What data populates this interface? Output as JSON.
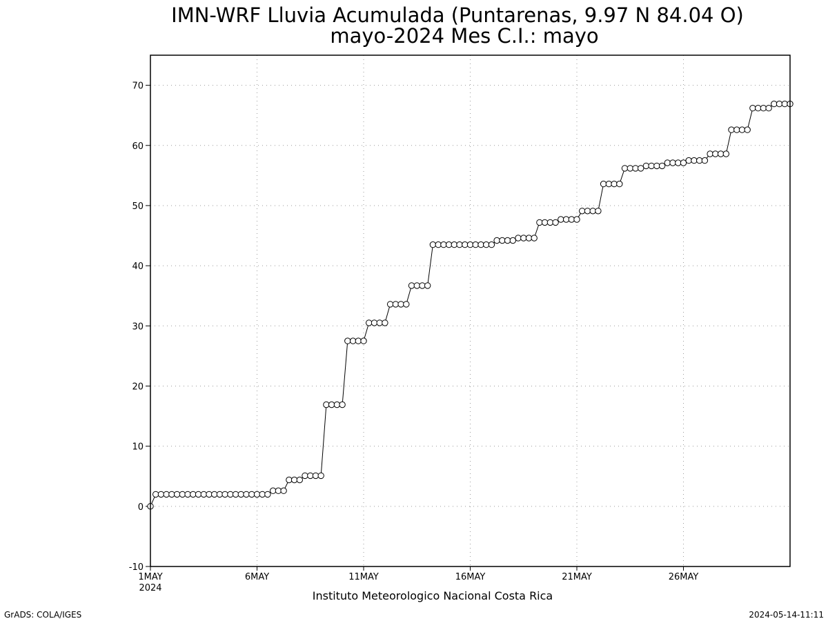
{
  "chart_data": {
    "type": "line",
    "title": "IMN-WRF  Lluvia Acumulada (Puntarenas, 9.97  N 84.04  O)",
    "subtitle": "mayo-2024 Mes C.I.: mayo",
    "xlabel": "Instituto Meteorologico Nacional Costa Rica",
    "ylabel": "",
    "ylim": [
      -10,
      75
    ],
    "yticks": [
      -10,
      0,
      10,
      20,
      30,
      40,
      50,
      60,
      70
    ],
    "xlim": [
      1,
      31
    ],
    "x_ticks": [
      {
        "day": 1,
        "label": "1MAY",
        "sublabel": "2024"
      },
      {
        "day": 6,
        "label": "6MAY"
      },
      {
        "day": 11,
        "label": "11MAY"
      },
      {
        "day": 16,
        "label": "16MAY"
      },
      {
        "day": 21,
        "label": "21MAY"
      },
      {
        "day": 26,
        "label": "26MAY"
      }
    ],
    "grid": true,
    "marker": "open-circle",
    "line_color": "#000000",
    "x_step_hours": 6,
    "series": [
      {
        "values": [
          0,
          2,
          2,
          2,
          2,
          2,
          2,
          2,
          2,
          2,
          2,
          2,
          2,
          2,
          2,
          2,
          2,
          2,
          2,
          2,
          2,
          2,
          2,
          2.6,
          2.6,
          2.6,
          4.4,
          4.4,
          4.4,
          5.1,
          5.1,
          5.1,
          5.1,
          16.9,
          16.9,
          16.9,
          16.9,
          27.5,
          27.5,
          27.5,
          27.5,
          30.5,
          30.5,
          30.5,
          30.5,
          33.6,
          33.6,
          33.6,
          33.6,
          36.7,
          36.7,
          36.7,
          36.7,
          43.5,
          43.5,
          43.5,
          43.5,
          43.5,
          43.5,
          43.5,
          43.5,
          43.5,
          43.5,
          43.5,
          43.5,
          44.2,
          44.2,
          44.2,
          44.2,
          44.6,
          44.6,
          44.6,
          44.6,
          47.2,
          47.2,
          47.2,
          47.2,
          47.7,
          47.7,
          47.7,
          47.7,
          49.1,
          49.1,
          49.1,
          49.1,
          53.6,
          53.6,
          53.6,
          53.6,
          56.2,
          56.2,
          56.2,
          56.2,
          56.6,
          56.6,
          56.6,
          56.6,
          57.1,
          57.1,
          57.1,
          57.1,
          57.5,
          57.5,
          57.5,
          57.5,
          58.6,
          58.6,
          58.6,
          58.6,
          62.6,
          62.6,
          62.6,
          62.6,
          66.2,
          66.2,
          66.2,
          66.2,
          66.9,
          66.9,
          66.9,
          66.9
        ]
      }
    ]
  },
  "footer": {
    "left": "GrADS: COLA/IGES",
    "right": "2024-05-14-11:11"
  }
}
